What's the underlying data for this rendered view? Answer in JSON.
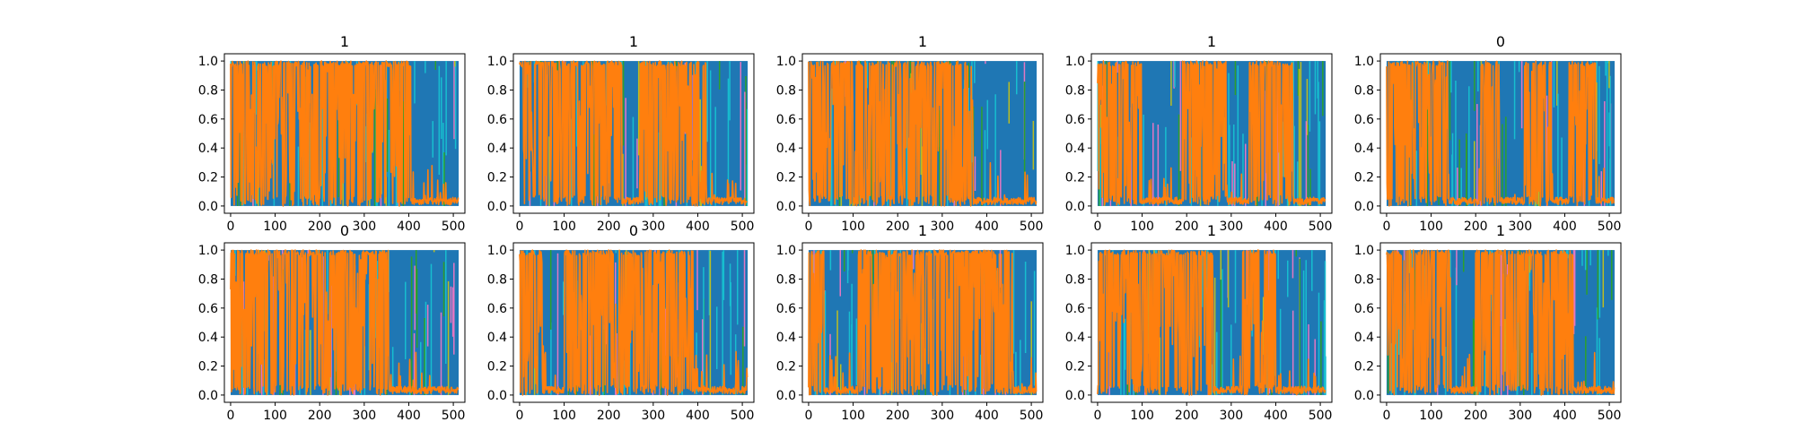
{
  "colors": {
    "blue": "#1f77b4",
    "orange": "#ff7f0e",
    "cyan": "#17becf",
    "olive": "#bcbd22",
    "green": "#2ca02c",
    "pink": "#e377c2",
    "frame": "#000000",
    "background": "#ffffff"
  },
  "chart_data": [
    {
      "type": "line",
      "title": "1",
      "xlim": [
        -14,
        526
      ],
      "ylim": [
        -0.05,
        1.05
      ],
      "xticks": [
        0,
        100,
        200,
        300,
        400,
        500
      ],
      "yticks": [
        0.0,
        0.2,
        0.4,
        0.6,
        0.8,
        1.0
      ],
      "series": [
        {
          "color": "orange",
          "segments": [
            [
              0,
              405,
              "high"
            ],
            [
              405,
              512,
              "low"
            ]
          ]
        }
      ],
      "grid": false
    },
    {
      "type": "line",
      "title": "1",
      "xlim": [
        -14,
        526
      ],
      "ylim": [
        -0.05,
        1.05
      ],
      "xticks": [
        0,
        100,
        200,
        300,
        400,
        500
      ],
      "yticks": [
        0.0,
        0.2,
        0.4,
        0.6,
        0.8,
        1.0
      ],
      "series": [
        {
          "color": "orange",
          "segments": [
            [
              0,
              230,
              "high"
            ],
            [
              230,
              270,
              "low"
            ],
            [
              270,
              420,
              "high"
            ],
            [
              420,
              512,
              "low"
            ]
          ]
        }
      ],
      "grid": false
    },
    {
      "type": "line",
      "title": "1",
      "xlim": [
        -14,
        526
      ],
      "ylim": [
        -0.05,
        1.05
      ],
      "xticks": [
        0,
        100,
        200,
        300,
        400,
        500
      ],
      "yticks": [
        0.0,
        0.2,
        0.4,
        0.6,
        0.8,
        1.0
      ],
      "series": [
        {
          "color": "orange",
          "segments": [
            [
              0,
              370,
              "high"
            ],
            [
              370,
              512,
              "low"
            ]
          ]
        }
      ],
      "grid": false
    },
    {
      "type": "line",
      "title": "1",
      "xlim": [
        -14,
        526
      ],
      "ylim": [
        -0.05,
        1.05
      ],
      "xticks": [
        0,
        100,
        200,
        300,
        400,
        500
      ],
      "yticks": [
        0.0,
        0.2,
        0.4,
        0.6,
        0.8,
        1.0
      ],
      "series": [
        {
          "color": "orange",
          "segments": [
            [
              0,
              100,
              "high"
            ],
            [
              100,
              190,
              "low"
            ],
            [
              190,
              290,
              "high"
            ],
            [
              290,
              340,
              "low"
            ],
            [
              340,
              440,
              "high"
            ],
            [
              440,
              512,
              "low"
            ]
          ]
        }
      ],
      "grid": false
    },
    {
      "type": "line",
      "title": "0",
      "xlim": [
        -14,
        526
      ],
      "ylim": [
        -0.05,
        1.05
      ],
      "xticks": [
        0,
        100,
        200,
        300,
        400,
        500
      ],
      "yticks": [
        0.0,
        0.2,
        0.4,
        0.6,
        0.8,
        1.0
      ],
      "series": [
        {
          "color": "orange",
          "segments": [
            [
              0,
              140,
              "high"
            ],
            [
              140,
              210,
              "low"
            ],
            [
              210,
              255,
              "high"
            ],
            [
              255,
              310,
              "low"
            ],
            [
              310,
              370,
              "high"
            ],
            [
              370,
              410,
              "low"
            ],
            [
              410,
              470,
              "high"
            ],
            [
              470,
              512,
              "low"
            ]
          ]
        }
      ],
      "grid": false
    },
    {
      "type": "line",
      "title": "0",
      "xlim": [
        -14,
        526
      ],
      "ylim": [
        -0.05,
        1.05
      ],
      "xticks": [
        0,
        100,
        200,
        300,
        400,
        500
      ],
      "yticks": [
        0.0,
        0.2,
        0.4,
        0.6,
        0.8,
        1.0
      ],
      "series": [
        {
          "color": "orange",
          "segments": [
            [
              0,
              355,
              "high"
            ],
            [
              355,
              512,
              "low"
            ]
          ]
        }
      ],
      "grid": false
    },
    {
      "type": "line",
      "title": "0",
      "xlim": [
        -14,
        526
      ],
      "ylim": [
        -0.05,
        1.05
      ],
      "xticks": [
        0,
        100,
        200,
        300,
        400,
        500
      ],
      "yticks": [
        0.0,
        0.2,
        0.4,
        0.6,
        0.8,
        1.0
      ],
      "series": [
        {
          "color": "orange",
          "segments": [
            [
              0,
              55,
              "high"
            ],
            [
              55,
              100,
              "low"
            ],
            [
              100,
              390,
              "high"
            ],
            [
              390,
              512,
              "low"
            ]
          ]
        }
      ],
      "grid": false
    },
    {
      "type": "line",
      "title": "1",
      "xlim": [
        -14,
        526
      ],
      "ylim": [
        -0.05,
        1.05
      ],
      "xticks": [
        0,
        100,
        200,
        300,
        400,
        500
      ],
      "yticks": [
        0.0,
        0.2,
        0.4,
        0.6,
        0.8,
        1.0
      ],
      "series": [
        {
          "color": "orange",
          "segments": [
            [
              0,
              35,
              "high"
            ],
            [
              35,
              110,
              "low"
            ],
            [
              110,
              460,
              "high"
            ],
            [
              460,
              512,
              "low"
            ]
          ]
        }
      ],
      "grid": false
    },
    {
      "type": "line",
      "title": "1",
      "xlim": [
        -14,
        526
      ],
      "ylim": [
        -0.05,
        1.05
      ],
      "xticks": [
        0,
        100,
        200,
        300,
        400,
        500
      ],
      "yticks": [
        0.0,
        0.2,
        0.4,
        0.6,
        0.8,
        1.0
      ],
      "series": [
        {
          "color": "orange",
          "segments": [
            [
              0,
              260,
              "high"
            ],
            [
              260,
              320,
              "low"
            ],
            [
              320,
              400,
              "high"
            ],
            [
              400,
              512,
              "low"
            ]
          ]
        }
      ],
      "grid": false
    },
    {
      "type": "line",
      "title": "1",
      "xlim": [
        -14,
        526
      ],
      "ylim": [
        -0.05,
        1.05
      ],
      "xticks": [
        0,
        100,
        200,
        300,
        400,
        500
      ],
      "yticks": [
        0.0,
        0.2,
        0.4,
        0.6,
        0.8,
        1.0
      ],
      "series": [
        {
          "color": "orange",
          "segments": [
            [
              0,
              145,
              "high"
            ],
            [
              145,
              200,
              "low"
            ],
            [
              200,
              420,
              "high"
            ],
            [
              420,
              512,
              "low"
            ]
          ]
        }
      ],
      "grid": false
    }
  ]
}
